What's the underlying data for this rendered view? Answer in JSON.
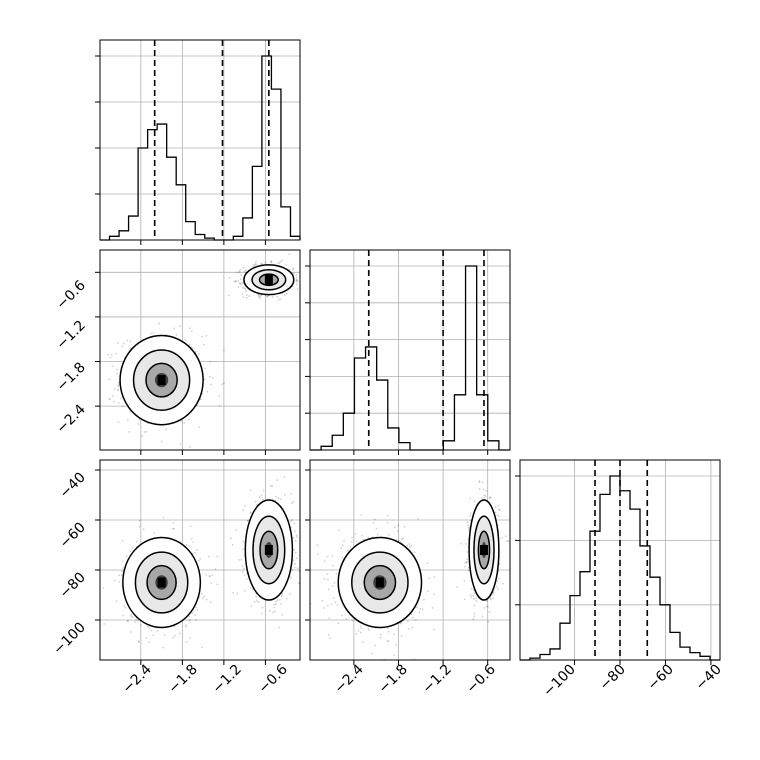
{
  "chart_data": [
    {
      "type": "histogram",
      "panel": "x-marginal",
      "x_range": [
        -3.0,
        -0.1
      ],
      "bin_counts": [
        0.0,
        0.02,
        0.05,
        0.13,
        0.5,
        0.6,
        0.63,
        0.45,
        0.3,
        0.1,
        0.03,
        0.01,
        0.0,
        0.0,
        0.02,
        0.12,
        0.4,
        1.0,
        0.82,
        0.18,
        0.02
      ],
      "quantile_lines": [
        -2.2,
        -1.22,
        -0.55
      ],
      "grid": true
    },
    {
      "type": "scatter",
      "panel": "x-y-joint",
      "x_range": [
        -3.0,
        -0.1
      ],
      "y_range": [
        -3.0,
        -0.3
      ],
      "clusters": [
        {
          "center": [
            -2.1,
            -2.05
          ],
          "spread": [
            0.3,
            0.3
          ]
        },
        {
          "center": [
            -0.55,
            -0.7
          ],
          "spread": [
            0.18,
            0.1
          ]
        }
      ],
      "ticks": {
        "y": [
          "−0.6",
          "−1.2",
          "−1.8",
          "−2.4"
        ]
      },
      "grid": true
    },
    {
      "type": "histogram",
      "panel": "y-marginal",
      "x_range": [
        -3.0,
        -0.3
      ],
      "bin_counts": [
        0.0,
        0.02,
        0.08,
        0.2,
        0.5,
        0.56,
        0.38,
        0.12,
        0.04,
        0.0,
        0.0,
        0.0,
        0.05,
        0.3,
        1.0,
        0.3,
        0.05,
        0.0
      ],
      "quantile_lines": [
        -2.2,
        -1.2,
        -0.65
      ],
      "grid": true
    },
    {
      "type": "scatter",
      "panel": "x-z-joint",
      "x_range": [
        -3.0,
        -0.1
      ],
      "z_range": [
        -116,
        -36
      ],
      "clusters": [
        {
          "center": [
            -2.1,
            -85
          ],
          "spread": [
            0.28,
            9
          ]
        },
        {
          "center": [
            -0.55,
            -72
          ],
          "spread": [
            0.17,
            10
          ]
        }
      ],
      "ticks": {
        "x": [
          "−2.4",
          "−1.8",
          "−1.2",
          "−0.6"
        ],
        "y": [
          "−40",
          "−60",
          "−80",
          "−100"
        ]
      },
      "grid": true
    },
    {
      "type": "scatter",
      "panel": "y-z-joint",
      "x_range": [
        -3.0,
        -0.3
      ],
      "z_range": [
        -116,
        -36
      ],
      "clusters": [
        {
          "center": [
            -2.05,
            -85
          ],
          "spread": [
            0.28,
            9
          ]
        },
        {
          "center": [
            -0.65,
            -72
          ],
          "spread": [
            0.1,
            10
          ]
        }
      ],
      "ticks": {
        "x": [
          "−2.4",
          "−1.8",
          "−1.2",
          "−0.6"
        ]
      },
      "grid": true
    },
    {
      "type": "histogram",
      "panel": "z-marginal",
      "x_range": [
        -124,
        -36
      ],
      "bin_counts": [
        0.0,
        0.01,
        0.03,
        0.06,
        0.2,
        0.35,
        0.48,
        0.7,
        0.9,
        1.0,
        0.92,
        0.82,
        0.62,
        0.45,
        0.3,
        0.15,
        0.07,
        0.04,
        0.02,
        0.0
      ],
      "quantile_lines": [
        -91,
        -80,
        -68
      ],
      "ticks": {
        "x": [
          "−100",
          "−80",
          "−60",
          "−40"
        ]
      },
      "grid": true
    }
  ]
}
